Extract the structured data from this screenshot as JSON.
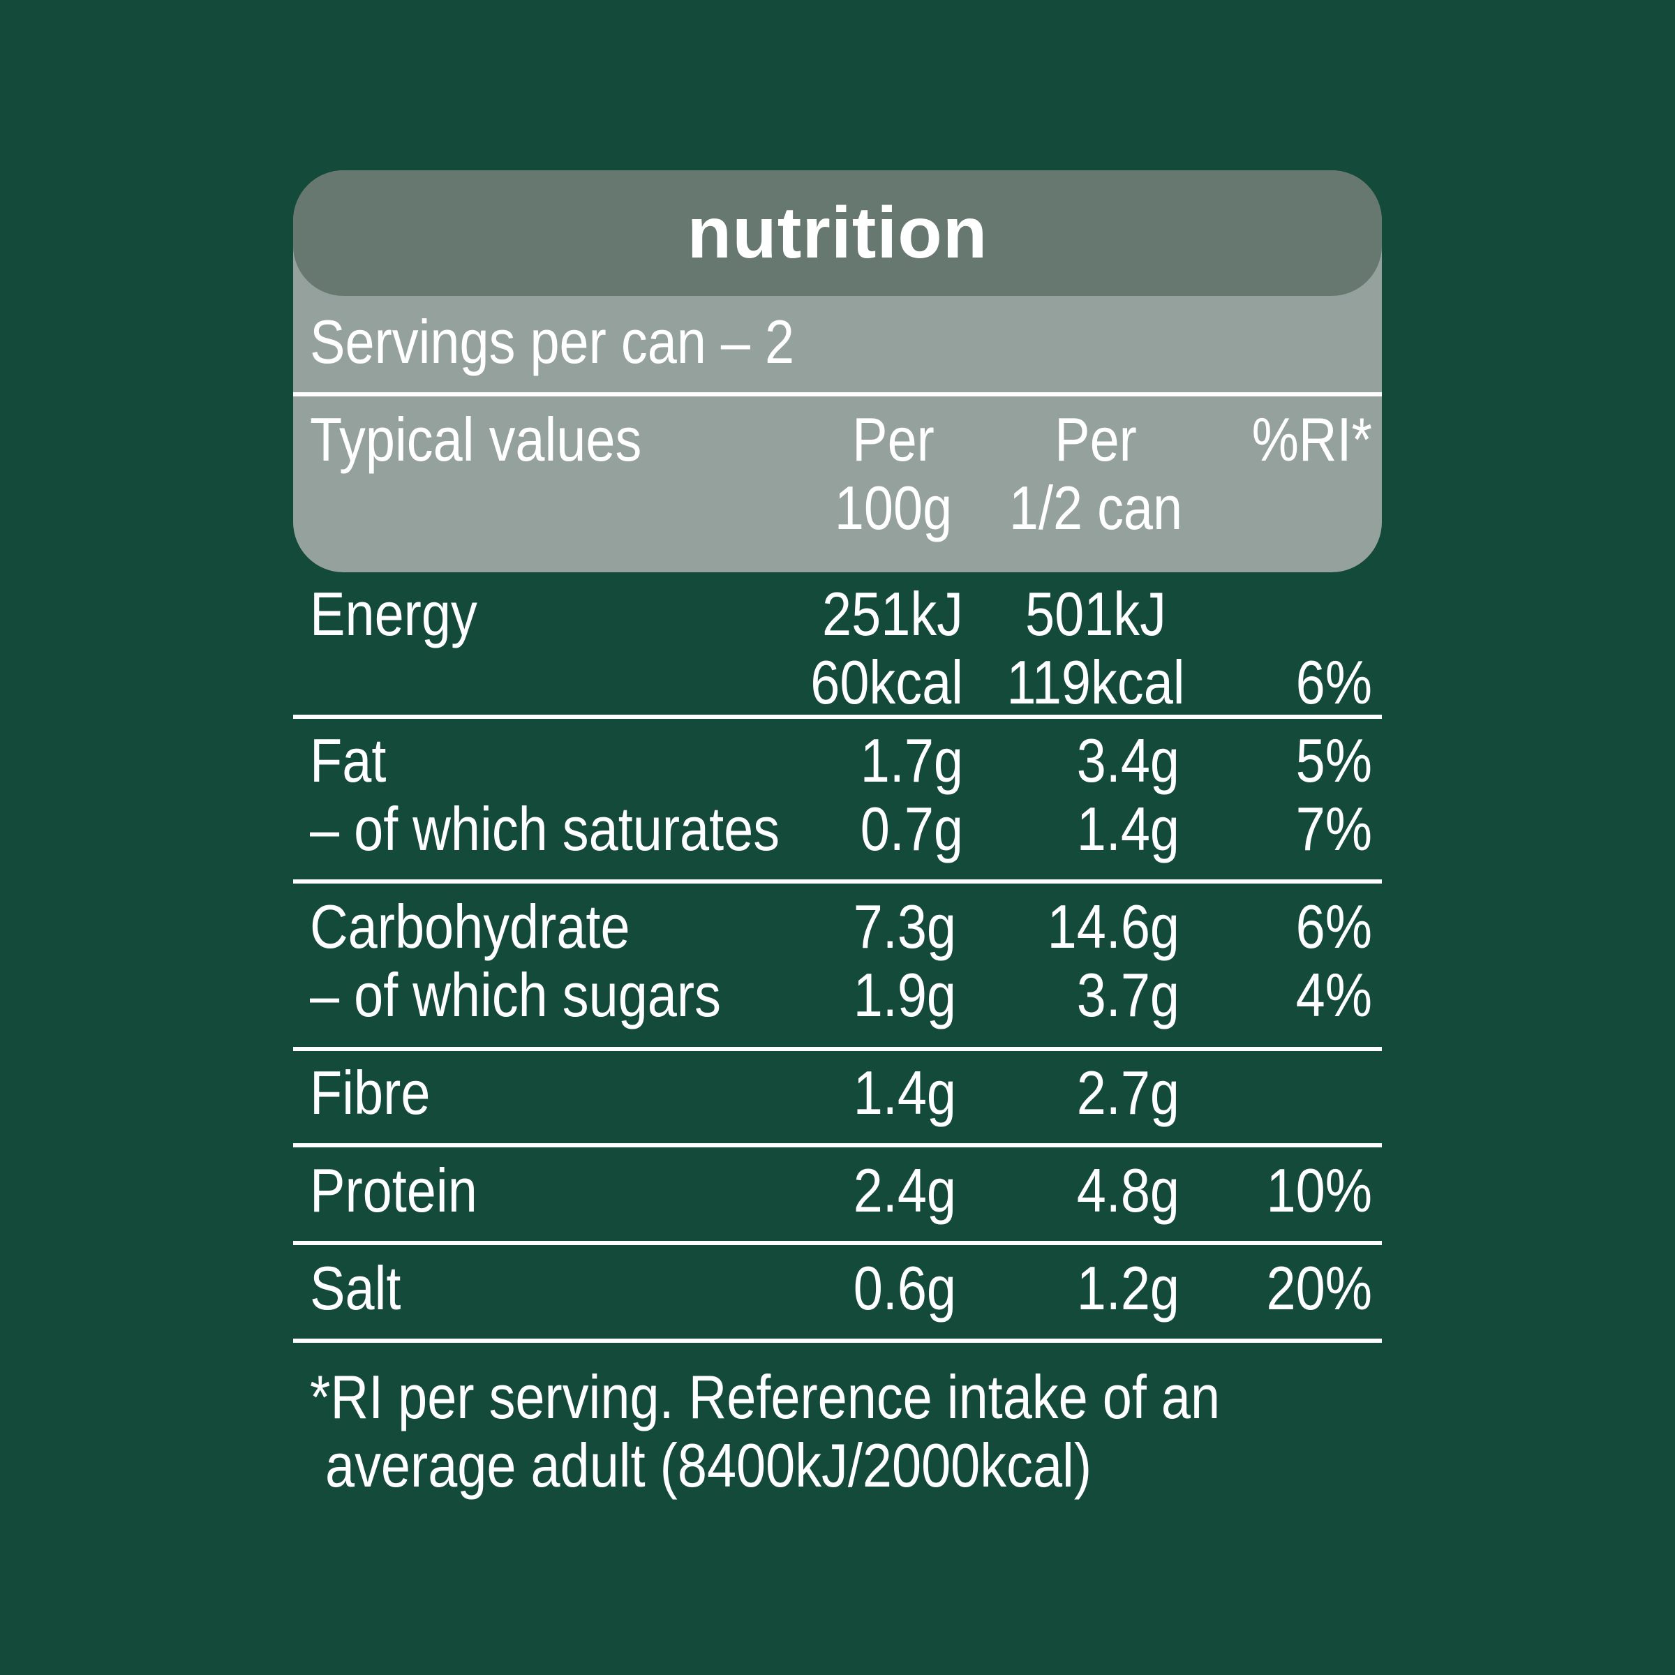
{
  "title": "nutrition",
  "servings": "Servings per can – 2",
  "columns": {
    "nutrient": "Typical values",
    "per100_line1": "Per",
    "per100_line2": "100g",
    "perhalf_line1": "Per",
    "perhalf_line2": "1/2 can",
    "ri": "%RI*"
  },
  "rows": {
    "energy": {
      "label": "Energy",
      "per100_kj": "251kJ",
      "per100_kcal": "60kcal",
      "perhalf_kj": "501kJ",
      "perhalf_kcal": "119kcal",
      "ri": "6%"
    },
    "fat": {
      "label": "Fat",
      "per100": "1.7g",
      "perhalf": "3.4g",
      "ri": "5%"
    },
    "saturates": {
      "label": "– of which saturates",
      "per100": "0.7g",
      "perhalf": "1.4g",
      "ri": "7%"
    },
    "carbohydrate": {
      "label": "Carbohydrate",
      "per100": "7.3g",
      "perhalf": "14.6g",
      "ri": "6%"
    },
    "sugars": {
      "label": "– of which sugars",
      "per100": "1.9g",
      "perhalf": "3.7g",
      "ri": "4%"
    },
    "fibre": {
      "label": "Fibre",
      "per100": "1.4g",
      "perhalf": "2.7g",
      "ri": ""
    },
    "protein": {
      "label": "Protein",
      "per100": "2.4g",
      "perhalf": "4.8g",
      "ri": "10%"
    },
    "salt": {
      "label": "Salt",
      "per100": "0.6g",
      "perhalf": "1.2g",
      "ri": "20%"
    }
  },
  "footnote": {
    "line1": "*RI per serving. Reference intake of an",
    "line2": "average adult (8400kJ/2000kcal)"
  },
  "colors": {
    "background": "#144a3a",
    "header_box": "#95a19c",
    "title_bar": "#66786f",
    "text": "#ffffff"
  }
}
